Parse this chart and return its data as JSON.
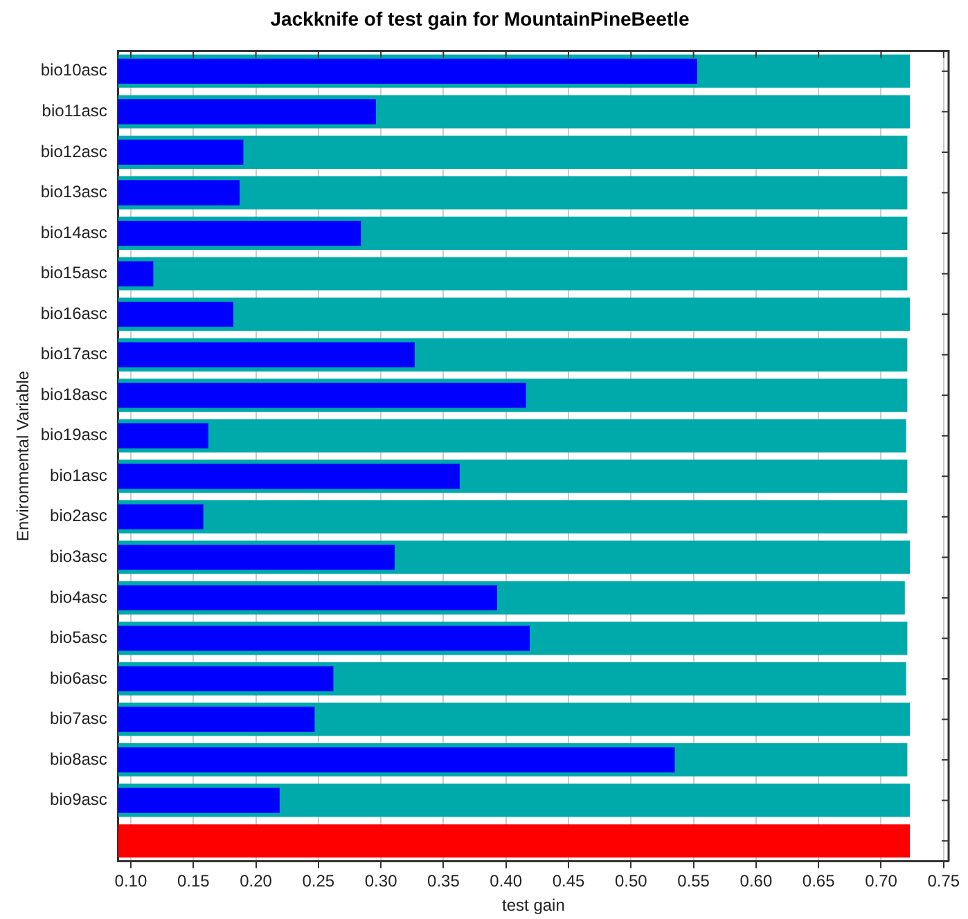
{
  "chart_data": {
    "type": "bar",
    "orientation": "horizontal",
    "title": "Jackknife of test gain for MountainPineBeetle",
    "xlabel": "test gain",
    "ylabel": "Environmental Variable",
    "categories": [
      "bio10asc",
      "bio11asc",
      "bio12asc",
      "bio13asc",
      "bio14asc",
      "bio15asc",
      "bio16asc",
      "bio17asc",
      "bio18asc",
      "bio19asc",
      "bio1asc",
      "bio2asc",
      "bio3asc",
      "bio4asc",
      "bio5asc",
      "bio6asc",
      "bio7asc",
      "bio8asc",
      "bio9asc",
      null
    ],
    "series": [
      {
        "color": "#00aaaa",
        "values": [
          0.723,
          0.723,
          0.721,
          0.721,
          0.721,
          0.721,
          0.723,
          0.721,
          0.721,
          0.72,
          0.721,
          0.721,
          0.723,
          0.719,
          0.721,
          0.72,
          0.723,
          0.721,
          0.723,
          null
        ]
      },
      {
        "color": "#0000ff",
        "values": [
          0.553,
          0.296,
          0.19,
          0.187,
          0.284,
          0.118,
          0.182,
          0.327,
          0.416,
          0.162,
          0.363,
          0.158,
          0.311,
          0.393,
          0.419,
          0.262,
          0.247,
          0.535,
          0.219,
          null
        ]
      },
      {
        "color": "#ff0000",
        "values": [
          null,
          null,
          null,
          null,
          null,
          null,
          null,
          null,
          null,
          null,
          null,
          null,
          null,
          null,
          null,
          null,
          null,
          null,
          null,
          0.723
        ]
      }
    ],
    "xlim": [
      0.09,
      0.754
    ],
    "xticks": [
      {
        "value": 0.1,
        "label": "0.10"
      },
      {
        "value": 0.15,
        "label": "0.15"
      },
      {
        "value": 0.2,
        "label": "0.20"
      },
      {
        "value": 0.25,
        "label": "0.25"
      },
      {
        "value": 0.3,
        "label": "0.30"
      },
      {
        "value": 0.35,
        "label": "0.35"
      },
      {
        "value": 0.4,
        "label": "0.40"
      },
      {
        "value": 0.45,
        "label": "0.45"
      },
      {
        "value": 0.5,
        "label": "0.50"
      },
      {
        "value": 0.55,
        "label": "0.55"
      },
      {
        "value": 0.6,
        "label": "0.60"
      },
      {
        "value": 0.65,
        "label": "0.65"
      },
      {
        "value": 0.7,
        "label": "0.70"
      },
      {
        "value": 0.75,
        "label": "0.75"
      }
    ],
    "grid": "x",
    "legend": false
  }
}
